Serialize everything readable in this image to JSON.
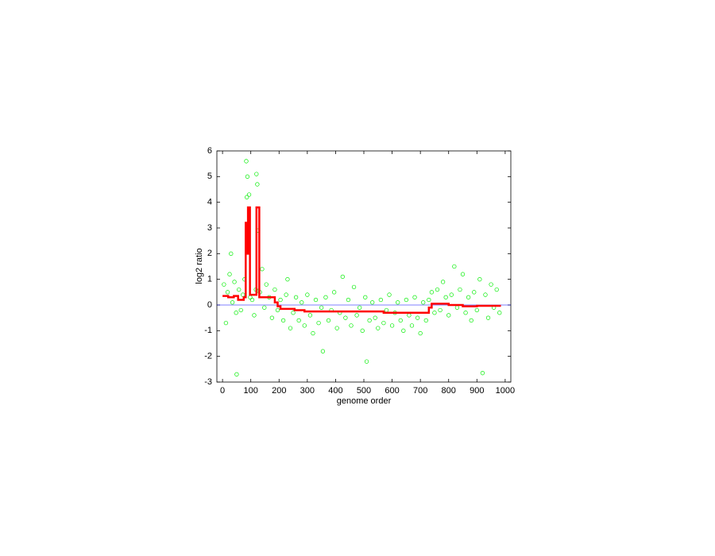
{
  "chart_data": {
    "type": "scatter",
    "xlabel": "genome order",
    "ylabel": "log2 ratio",
    "xlim": [
      -20,
      1020
    ],
    "ylim": [
      -3,
      6
    ],
    "xticks": [
      0,
      100,
      200,
      300,
      400,
      500,
      600,
      700,
      800,
      900,
      1000
    ],
    "yticks": [
      -3,
      -2,
      -1,
      0,
      1,
      2,
      3,
      4,
      5,
      6
    ],
    "reference_line": 0,
    "reference_color": "#0000ff",
    "series": [
      {
        "type": "scatter",
        "color": "#00ee00",
        "x": [
          5,
          12,
          18,
          25,
          30,
          35,
          42,
          48,
          50,
          58,
          65,
          72,
          78,
          84,
          86,
          88,
          91,
          94,
          98,
          105,
          112,
          118,
          120,
          123,
          126,
          132,
          140,
          148,
          155,
          165,
          175,
          185,
          195,
          205,
          215,
          225,
          230,
          240,
          250,
          260,
          270,
          280,
          290,
          300,
          310,
          320,
          330,
          340,
          350,
          355,
          365,
          375,
          385,
          395,
          405,
          415,
          425,
          435,
          445,
          455,
          465,
          475,
          485,
          495,
          505,
          510,
          520,
          530,
          540,
          550,
          560,
          570,
          580,
          590,
          600,
          610,
          620,
          630,
          640,
          650,
          660,
          670,
          680,
          690,
          700,
          710,
          720,
          730,
          740,
          750,
          760,
          770,
          780,
          790,
          800,
          810,
          820,
          830,
          840,
          850,
          860,
          870,
          880,
          890,
          900,
          910,
          920,
          930,
          940,
          950,
          960,
          970,
          980
        ],
        "values": [
          0.8,
          -0.7,
          0.5,
          1.2,
          2.0,
          0.1,
          0.9,
          -0.3,
          -2.7,
          0.6,
          -0.2,
          0.4,
          1.0,
          5.6,
          4.2,
          5.0,
          3.1,
          4.3,
          0.3,
          0.2,
          -0.4,
          0.6,
          5.1,
          4.7,
          2.9,
          0.5,
          1.4,
          -0.1,
          0.8,
          0.3,
          -0.5,
          0.6,
          -0.2,
          0.2,
          -0.6,
          0.4,
          1.0,
          -0.9,
          -0.3,
          0.3,
          -0.6,
          0.1,
          -0.8,
          0.4,
          -0.4,
          -1.1,
          0.2,
          -0.7,
          -0.1,
          -1.8,
          0.3,
          -0.6,
          -0.2,
          0.5,
          -0.9,
          -0.3,
          1.1,
          -0.5,
          0.2,
          -0.8,
          0.7,
          -0.4,
          -0.1,
          -1.0,
          0.3,
          -2.2,
          -0.6,
          0.1,
          -0.5,
          -0.9,
          0.2,
          -0.7,
          -0.2,
          0.4,
          -0.8,
          -0.3,
          0.1,
          -0.6,
          -1.0,
          0.2,
          -0.4,
          -0.8,
          0.3,
          -0.5,
          -1.1,
          0.1,
          -0.6,
          0.2,
          0.5,
          -0.3,
          0.6,
          -0.2,
          0.9,
          0.3,
          -0.4,
          0.4,
          1.5,
          -0.1,
          0.6,
          1.2,
          -0.3,
          0.3,
          -0.6,
          0.5,
          -0.2,
          1.0,
          -2.65,
          0.4,
          -0.5,
          0.8,
          -0.1,
          0.6,
          -0.3
        ]
      },
      {
        "type": "line",
        "color": "#ff0000",
        "x": [
          0,
          20,
          20,
          40,
          40,
          55,
          55,
          75,
          75,
          82,
          82,
          87,
          87,
          90,
          90,
          97,
          97,
          120,
          120,
          130,
          130,
          185,
          185,
          195,
          195,
          205,
          205,
          255,
          255,
          290,
          290,
          570,
          570,
          730,
          730,
          740,
          740,
          800,
          800,
          850,
          850,
          900,
          900,
          985
        ],
        "values": [
          0.35,
          0.35,
          0.3,
          0.3,
          0.35,
          0.35,
          0.2,
          0.2,
          0.3,
          0.3,
          3.2,
          3.2,
          2.0,
          2.0,
          3.8,
          3.8,
          0.4,
          0.4,
          3.8,
          3.8,
          0.3,
          0.3,
          0.1,
          0.1,
          -0.05,
          -0.05,
          -0.15,
          -0.15,
          -0.2,
          -0.2,
          -0.25,
          -0.25,
          -0.3,
          -0.3,
          -0.1,
          -0.1,
          0.05,
          0.05,
          0.0,
          0.0,
          -0.05,
          -0.05,
          -0.03,
          -0.03
        ]
      }
    ]
  }
}
